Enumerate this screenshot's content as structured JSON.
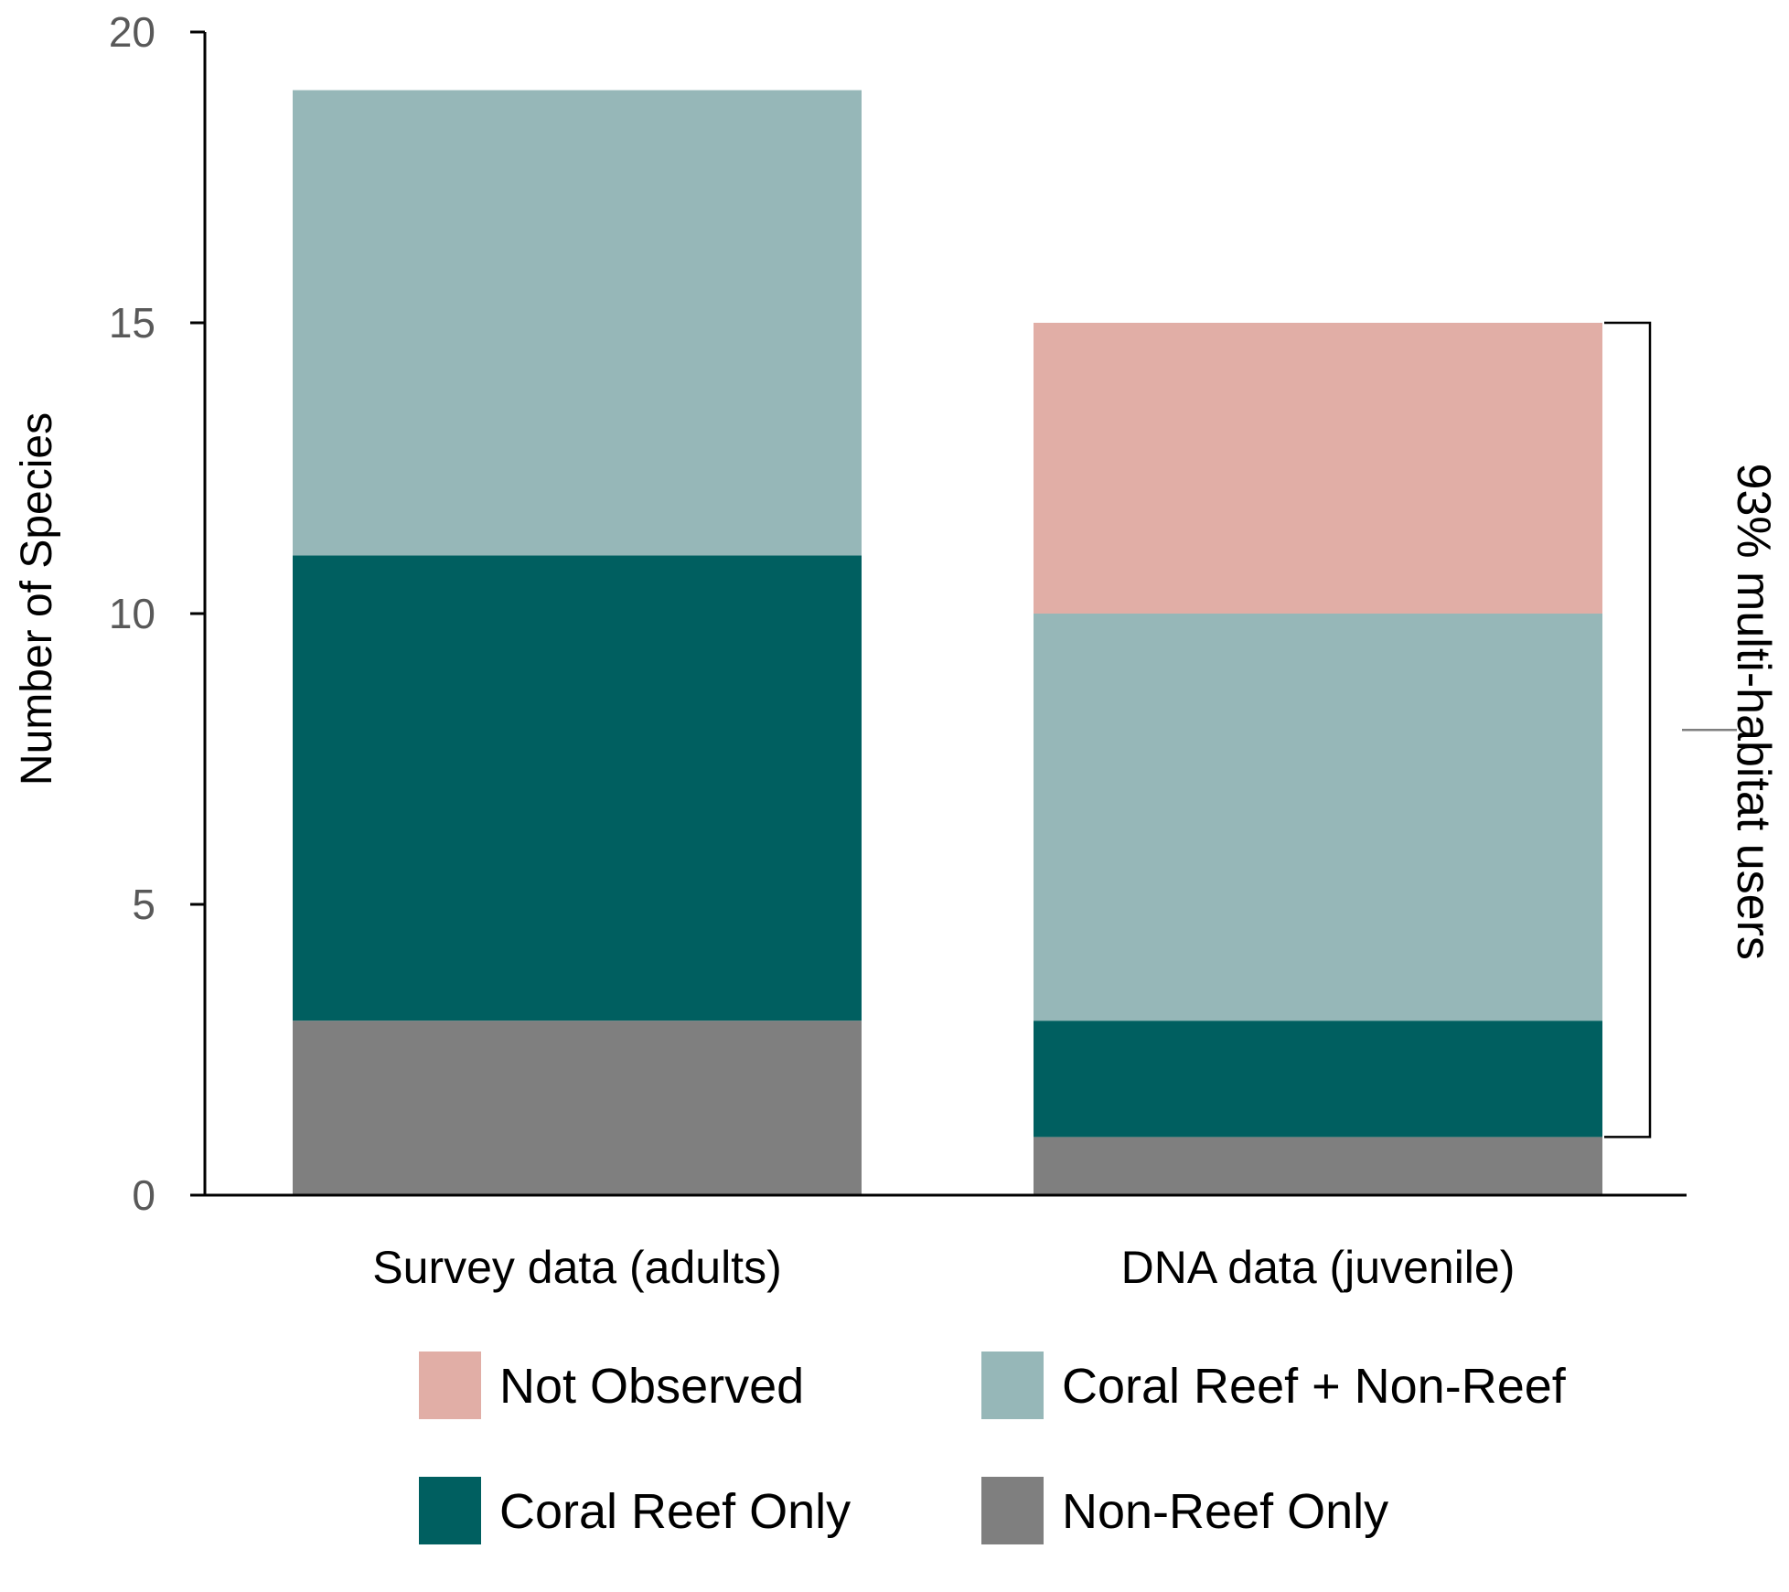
{
  "chart_data": {
    "type": "bar",
    "stacked": true,
    "title": "",
    "xlabel": "",
    "ylabel": "Number of Species",
    "ylim": [
      0,
      20
    ],
    "yticks": [
      0,
      5,
      10,
      15,
      20
    ],
    "grid": false,
    "categories": [
      "Survey data (adults)",
      "DNA data (juvenile)"
    ],
    "series": [
      {
        "name": "Non-Reef Only",
        "color": "#7f7f7f",
        "values": [
          3,
          1
        ]
      },
      {
        "name": "Coral Reef Only",
        "color": "#005f60",
        "values": [
          8,
          2
        ]
      },
      {
        "name": "Coral Reef + Non-Reef",
        "color": "#96b7b8",
        "values": [
          8,
          7
        ]
      },
      {
        "name": "Not Observed",
        "color": "#e1aea6",
        "values": [
          0,
          5
        ]
      }
    ],
    "legend_order": [
      "Not Observed",
      "Coral Reef + Non-Reef",
      "Coral Reef Only",
      "Non-Reef Only"
    ],
    "legend_position": "bottom",
    "annotation": {
      "text": "93% multi-habitat users",
      "category": "DNA data (juvenile)",
      "from": 1,
      "to": 15
    }
  }
}
